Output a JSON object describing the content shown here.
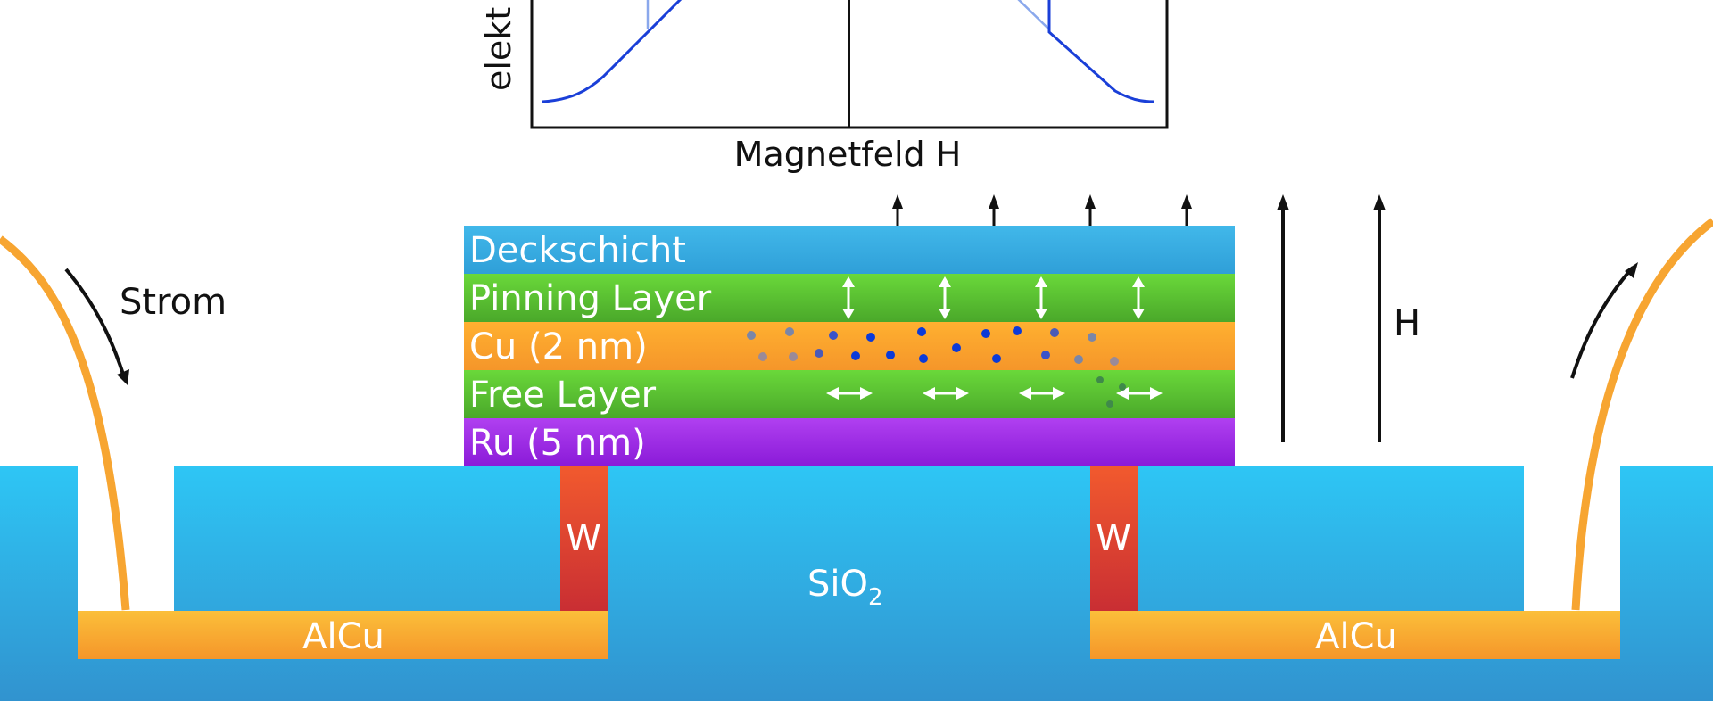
{
  "graph": {
    "y_axis_label": "elekt",
    "x_axis_label": "Magnetfeld H"
  },
  "layers": [
    {
      "label": "Deckschicht",
      "color_top": "#41b8ea",
      "color_bottom": "#2f9fd8"
    },
    {
      "label": "Pinning Layer",
      "color_top": "#6ad83a",
      "color_bottom": "#4aa82a"
    },
    {
      "label": "Cu (2 nm)",
      "color_top": "#ffb030",
      "color_bottom": "#f5962a"
    },
    {
      "label": "Free Layer",
      "color_top": "#6ad83a",
      "color_bottom": "#4aa82a"
    },
    {
      "label": "Ru (5 nm)",
      "color_top": "#b040f0",
      "color_bottom": "#8a1ad8"
    }
  ],
  "substrate": {
    "label_main": "SiO",
    "label_sub": "2",
    "color_top": "#2ec6f5",
    "color_bottom": "#3193cf"
  },
  "contacts": {
    "w_label": "W",
    "alcu_label": "AlCu"
  },
  "current": {
    "label": "Strom"
  },
  "field": {
    "label": "H"
  },
  "colors": {
    "curve": "#1a3fd8",
    "curve_light": "#8aa8ec",
    "electron_dark": "#0b3ad8",
    "electron_faded": "#7a86a8",
    "wire": "#f7a531",
    "tungsten": "#d9402a",
    "alcu": "#f7b53a"
  }
}
